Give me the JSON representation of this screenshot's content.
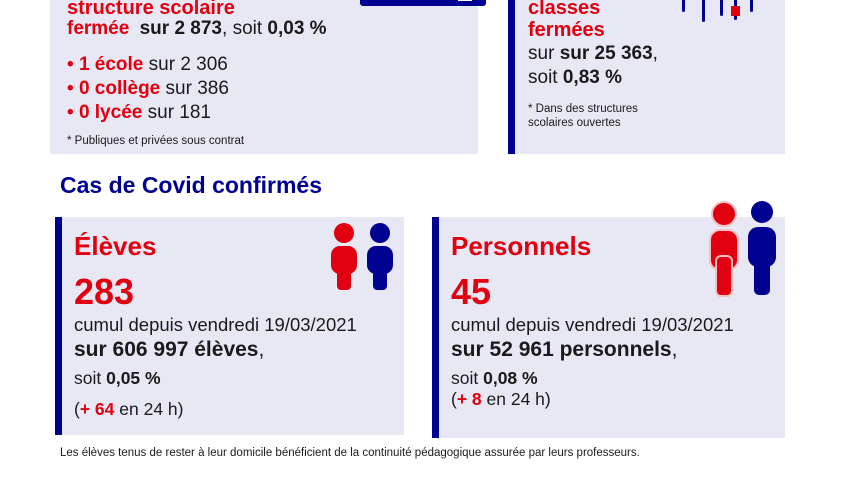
{
  "schools_card": {
    "title_line1": "structure scolaire",
    "title_line2": "fermée",
    "total_text": "sur 2 873",
    "soit_word": ", soit",
    "percent": "0,03 %",
    "items": [
      {
        "count": "1 école",
        "total": "sur 2 306"
      },
      {
        "count": "0 collège",
        "total": "sur 386"
      },
      {
        "count": "0 lycée",
        "total": "sur 181"
      }
    ],
    "footnote": "* Publiques et privées sous contrat"
  },
  "classes_card": {
    "title_line1": "classes",
    "title_line2": "fermées",
    "total_text": "sur 25 363",
    "comma": ",",
    "soit_word": "soit",
    "percent": "0,83 %",
    "footnote_line1": "* Dans des structures",
    "footnote_line2": "scolaires ouvertes"
  },
  "section_title": "Cas de Covid confirmés",
  "students_card": {
    "label": "Élèves",
    "value": "283",
    "since": "cumul depuis vendredi 19/03/2021",
    "total": "sur 606 997 élèves",
    "comma": ",",
    "soit_word": "soit",
    "percent": "0,05 %",
    "delta_open": "(",
    "delta_value": "+ 64",
    "delta_rest": " en 24 h)"
  },
  "staff_card": {
    "label": "Personnels",
    "value": "45",
    "since": "cumul depuis vendredi 19/03/2021",
    "total": "sur 52 961 personnels",
    "comma": ",",
    "soit_word": "soit",
    "percent": "0,08 %",
    "delta_open": "(",
    "delta_value": "+ 8",
    "delta_rest": " en 24 h)"
  },
  "footer_note": "Les élèves tenus de rester à leur domicile bénéficient de la continuité pédagogique assurée par leurs professeurs.",
  "colors": {
    "red": "#e1000f",
    "blue": "#000091",
    "card_bg": "#e8e8f5"
  },
  "icons": [
    "school-icon",
    "classroom-icon",
    "student-figures-icon",
    "staff-figures-icon"
  ]
}
